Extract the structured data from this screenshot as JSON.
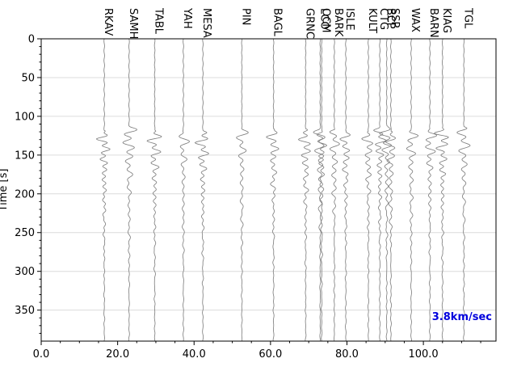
{
  "chart_data": {
    "type": "line",
    "title": "",
    "xlabel": "",
    "ylabel": "Time [s]",
    "xlim": [
      0,
      119
    ],
    "ylim": [
      390,
      0
    ],
    "y_inverted": true,
    "grid": "horizontal",
    "x_ticks": [
      0.0,
      20.0,
      40.0,
      60.0,
      80.0,
      100.0
    ],
    "x_tick_labels": [
      "0.0",
      "20.0",
      "40.0",
      "60.0",
      "80.0",
      "100.0"
    ],
    "y_ticks": [
      0,
      50,
      100,
      150,
      200,
      250,
      300,
      350
    ],
    "y_tick_labels": [
      "0",
      "50",
      "100",
      "150",
      "200",
      "250",
      "300",
      "350"
    ],
    "annotation": {
      "text": "3.8km/sec",
      "color": "#0000dd",
      "position": "bottom-right"
    },
    "trace_color": "#808080",
    "series": [
      {
        "name": "RKAV",
        "distance": 16.5
      },
      {
        "name": "SAMH",
        "distance": 23.0
      },
      {
        "name": "TABL",
        "distance": 29.7
      },
      {
        "name": "YAH",
        "distance": 37.2
      },
      {
        "name": "MESA",
        "distance": 42.3
      },
      {
        "name": "PIN",
        "distance": 52.5
      },
      {
        "name": "BAGL",
        "distance": 60.8
      },
      {
        "name": "GRNC",
        "distance": 69.2
      },
      {
        "name": "LCO",
        "distance": 73.0
      },
      {
        "name": "OCM",
        "distance": 73.4
      },
      {
        "name": "BARK",
        "distance": 76.7
      },
      {
        "name": "ISLE",
        "distance": 79.7
      },
      {
        "name": "KULT",
        "distance": 85.6
      },
      {
        "name": "CTG",
        "distance": 88.6
      },
      {
        "name": "BCP",
        "distance": 90.4
      },
      {
        "name": "SSP",
        "distance": 91.5
      },
      {
        "name": "WAX",
        "distance": 96.8
      },
      {
        "name": "BARN",
        "distance": 101.7
      },
      {
        "name": "KIAG",
        "distance": 105.0
      },
      {
        "name": "TGL",
        "distance": 110.6
      }
    ]
  }
}
